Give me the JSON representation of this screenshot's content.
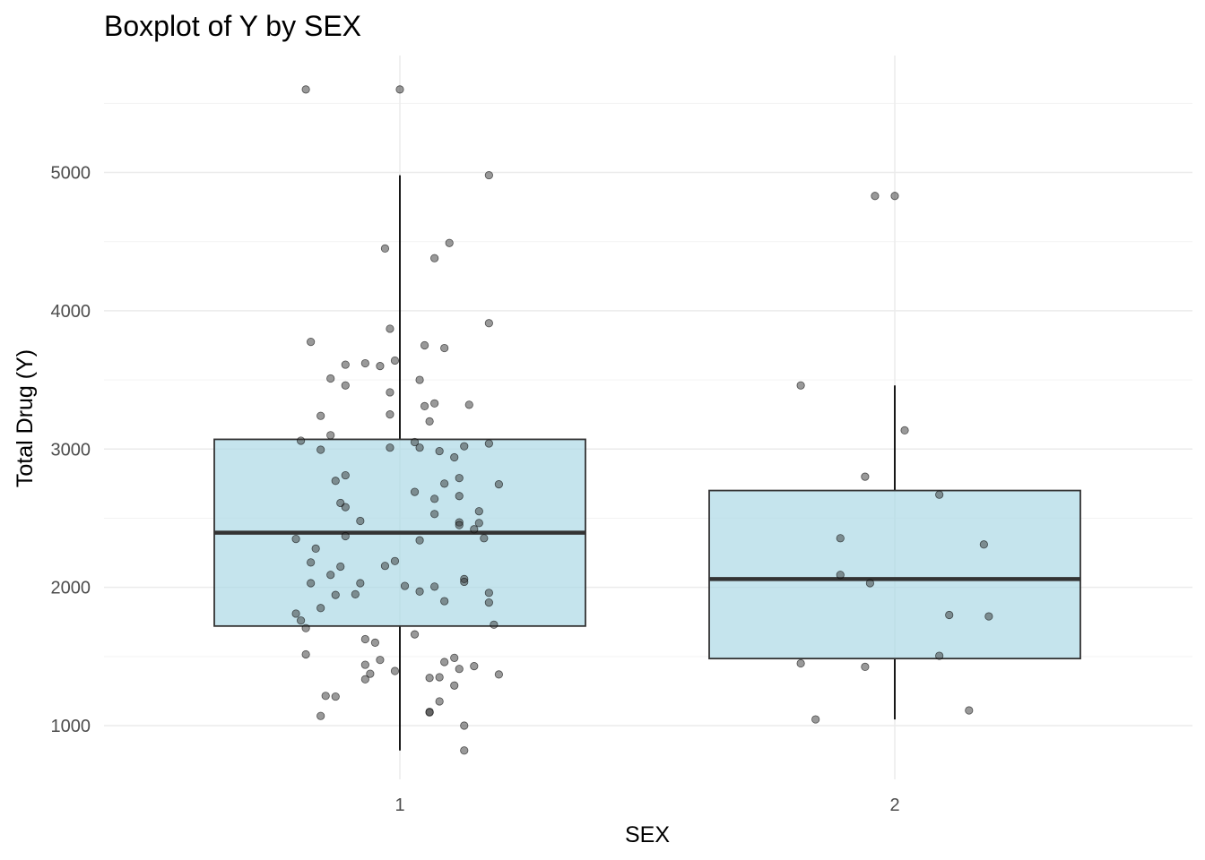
{
  "chart_data": {
    "type": "boxplot",
    "title": "Boxplot of Y by SEX",
    "xlabel": "SEX",
    "ylabel": "Total Drug (Y)",
    "categories": [
      "1",
      "2"
    ],
    "yticks": [
      1000,
      2000,
      3000,
      4000,
      5000
    ],
    "ylim": [
      600,
      5900
    ],
    "grid": true,
    "colors": {
      "box_fill": "#add8e6",
      "box_stroke": "#333333",
      "point": "#333333",
      "grid": "#ebebeb"
    },
    "boxes": [
      {
        "category": "1",
        "lower_whisker": 820,
        "q1": 1720,
        "median": 2395,
        "q3": 3070,
        "upper_whisker": 4980,
        "outliers": [
          5600
        ]
      },
      {
        "category": "2",
        "lower_whisker": 1045,
        "q1": 1485,
        "median": 2060,
        "q3": 2700,
        "upper_whisker": 3460,
        "outliers": [
          4830
        ]
      }
    ],
    "points": [
      {
        "x": 0.81,
        "y": 5600
      },
      {
        "x": 1.0,
        "y": 5600
      },
      {
        "x": 1.18,
        "y": 4980
      },
      {
        "x": 0.97,
        "y": 4450
      },
      {
        "x": 1.1,
        "y": 4490
      },
      {
        "x": 1.07,
        "y": 4380
      },
      {
        "x": 1.18,
        "y": 3910
      },
      {
        "x": 0.98,
        "y": 3870
      },
      {
        "x": 0.82,
        "y": 3775
      },
      {
        "x": 1.05,
        "y": 3750
      },
      {
        "x": 1.09,
        "y": 3730
      },
      {
        "x": 0.99,
        "y": 3640
      },
      {
        "x": 0.93,
        "y": 3620
      },
      {
        "x": 0.89,
        "y": 3610
      },
      {
        "x": 0.96,
        "y": 3600
      },
      {
        "x": 0.86,
        "y": 3510
      },
      {
        "x": 1.04,
        "y": 3500
      },
      {
        "x": 0.89,
        "y": 3460
      },
      {
        "x": 0.98,
        "y": 3410
      },
      {
        "x": 1.07,
        "y": 3330
      },
      {
        "x": 1.14,
        "y": 3320
      },
      {
        "x": 1.05,
        "y": 3310
      },
      {
        "x": 0.98,
        "y": 3250
      },
      {
        "x": 0.84,
        "y": 3240
      },
      {
        "x": 1.06,
        "y": 3200
      },
      {
        "x": 0.86,
        "y": 3100
      },
      {
        "x": 0.8,
        "y": 3060
      },
      {
        "x": 1.03,
        "y": 3050
      },
      {
        "x": 1.18,
        "y": 3040
      },
      {
        "x": 1.13,
        "y": 3020
      },
      {
        "x": 0.98,
        "y": 3010
      },
      {
        "x": 1.04,
        "y": 3010
      },
      {
        "x": 0.84,
        "y": 2995
      },
      {
        "x": 1.08,
        "y": 2985
      },
      {
        "x": 1.11,
        "y": 2940
      },
      {
        "x": 0.89,
        "y": 2810
      },
      {
        "x": 1.12,
        "y": 2790
      },
      {
        "x": 0.87,
        "y": 2770
      },
      {
        "x": 1.09,
        "y": 2750
      },
      {
        "x": 1.2,
        "y": 2745
      },
      {
        "x": 1.03,
        "y": 2690
      },
      {
        "x": 1.12,
        "y": 2660
      },
      {
        "x": 1.07,
        "y": 2640
      },
      {
        "x": 0.88,
        "y": 2610
      },
      {
        "x": 0.89,
        "y": 2580
      },
      {
        "x": 1.16,
        "y": 2550
      },
      {
        "x": 1.07,
        "y": 2530
      },
      {
        "x": 0.92,
        "y": 2480
      },
      {
        "x": 1.12,
        "y": 2470
      },
      {
        "x": 1.16,
        "y": 2465
      },
      {
        "x": 1.12,
        "y": 2450
      },
      {
        "x": 1.15,
        "y": 2420
      },
      {
        "x": 0.89,
        "y": 2370
      },
      {
        "x": 0.79,
        "y": 2350
      },
      {
        "x": 1.17,
        "y": 2355
      },
      {
        "x": 1.04,
        "y": 2340
      },
      {
        "x": 0.83,
        "y": 2280
      },
      {
        "x": 0.99,
        "y": 2190
      },
      {
        "x": 0.82,
        "y": 2180
      },
      {
        "x": 0.97,
        "y": 2155
      },
      {
        "x": 0.88,
        "y": 2150
      },
      {
        "x": 0.86,
        "y": 2090
      },
      {
        "x": 1.13,
        "y": 2060
      },
      {
        "x": 1.13,
        "y": 2040
      },
      {
        "x": 0.92,
        "y": 2030
      },
      {
        "x": 0.82,
        "y": 2030
      },
      {
        "x": 1.01,
        "y": 2010
      },
      {
        "x": 1.07,
        "y": 2005
      },
      {
        "x": 1.04,
        "y": 1970
      },
      {
        "x": 1.18,
        "y": 1960
      },
      {
        "x": 0.87,
        "y": 1945
      },
      {
        "x": 0.91,
        "y": 1950
      },
      {
        "x": 1.09,
        "y": 1900
      },
      {
        "x": 1.18,
        "y": 1890
      },
      {
        "x": 0.84,
        "y": 1850
      },
      {
        "x": 0.79,
        "y": 1810
      },
      {
        "x": 0.8,
        "y": 1760
      },
      {
        "x": 1.19,
        "y": 1730
      },
      {
        "x": 0.81,
        "y": 1705
      },
      {
        "x": 1.03,
        "y": 1660
      },
      {
        "x": 0.93,
        "y": 1625
      },
      {
        "x": 0.95,
        "y": 1600
      },
      {
        "x": 0.81,
        "y": 1515
      },
      {
        "x": 1.11,
        "y": 1490
      },
      {
        "x": 0.96,
        "y": 1475
      },
      {
        "x": 1.09,
        "y": 1460
      },
      {
        "x": 0.93,
        "y": 1440
      },
      {
        "x": 1.15,
        "y": 1430
      },
      {
        "x": 1.12,
        "y": 1410
      },
      {
        "x": 0.99,
        "y": 1395
      },
      {
        "x": 0.94,
        "y": 1375
      },
      {
        "x": 1.2,
        "y": 1370
      },
      {
        "x": 1.08,
        "y": 1350
      },
      {
        "x": 1.06,
        "y": 1345
      },
      {
        "x": 0.93,
        "y": 1335
      },
      {
        "x": 1.11,
        "y": 1290
      },
      {
        "x": 0.85,
        "y": 1215
      },
      {
        "x": 0.87,
        "y": 1210
      },
      {
        "x": 1.08,
        "y": 1175
      },
      {
        "x": 1.06,
        "y": 1100
      },
      {
        "x": 1.06,
        "y": 1095
      },
      {
        "x": 0.84,
        "y": 1070
      },
      {
        "x": 1.13,
        "y": 1000
      },
      {
        "x": 1.13,
        "y": 820
      },
      {
        "x": 1.96,
        "y": 4830
      },
      {
        "x": 2.0,
        "y": 4830
      },
      {
        "x": 1.81,
        "y": 3460
      },
      {
        "x": 2.02,
        "y": 3135
      },
      {
        "x": 1.94,
        "y": 2800
      },
      {
        "x": 2.09,
        "y": 2670
      },
      {
        "x": 1.89,
        "y": 2355
      },
      {
        "x": 2.18,
        "y": 2310
      },
      {
        "x": 1.89,
        "y": 2090
      },
      {
        "x": 1.95,
        "y": 2030
      },
      {
        "x": 2.11,
        "y": 1800
      },
      {
        "x": 2.19,
        "y": 1790
      },
      {
        "x": 2.09,
        "y": 1505
      },
      {
        "x": 1.81,
        "y": 1450
      },
      {
        "x": 1.94,
        "y": 1425
      },
      {
        "x": 2.15,
        "y": 1110
      },
      {
        "x": 1.84,
        "y": 1045
      }
    ]
  }
}
